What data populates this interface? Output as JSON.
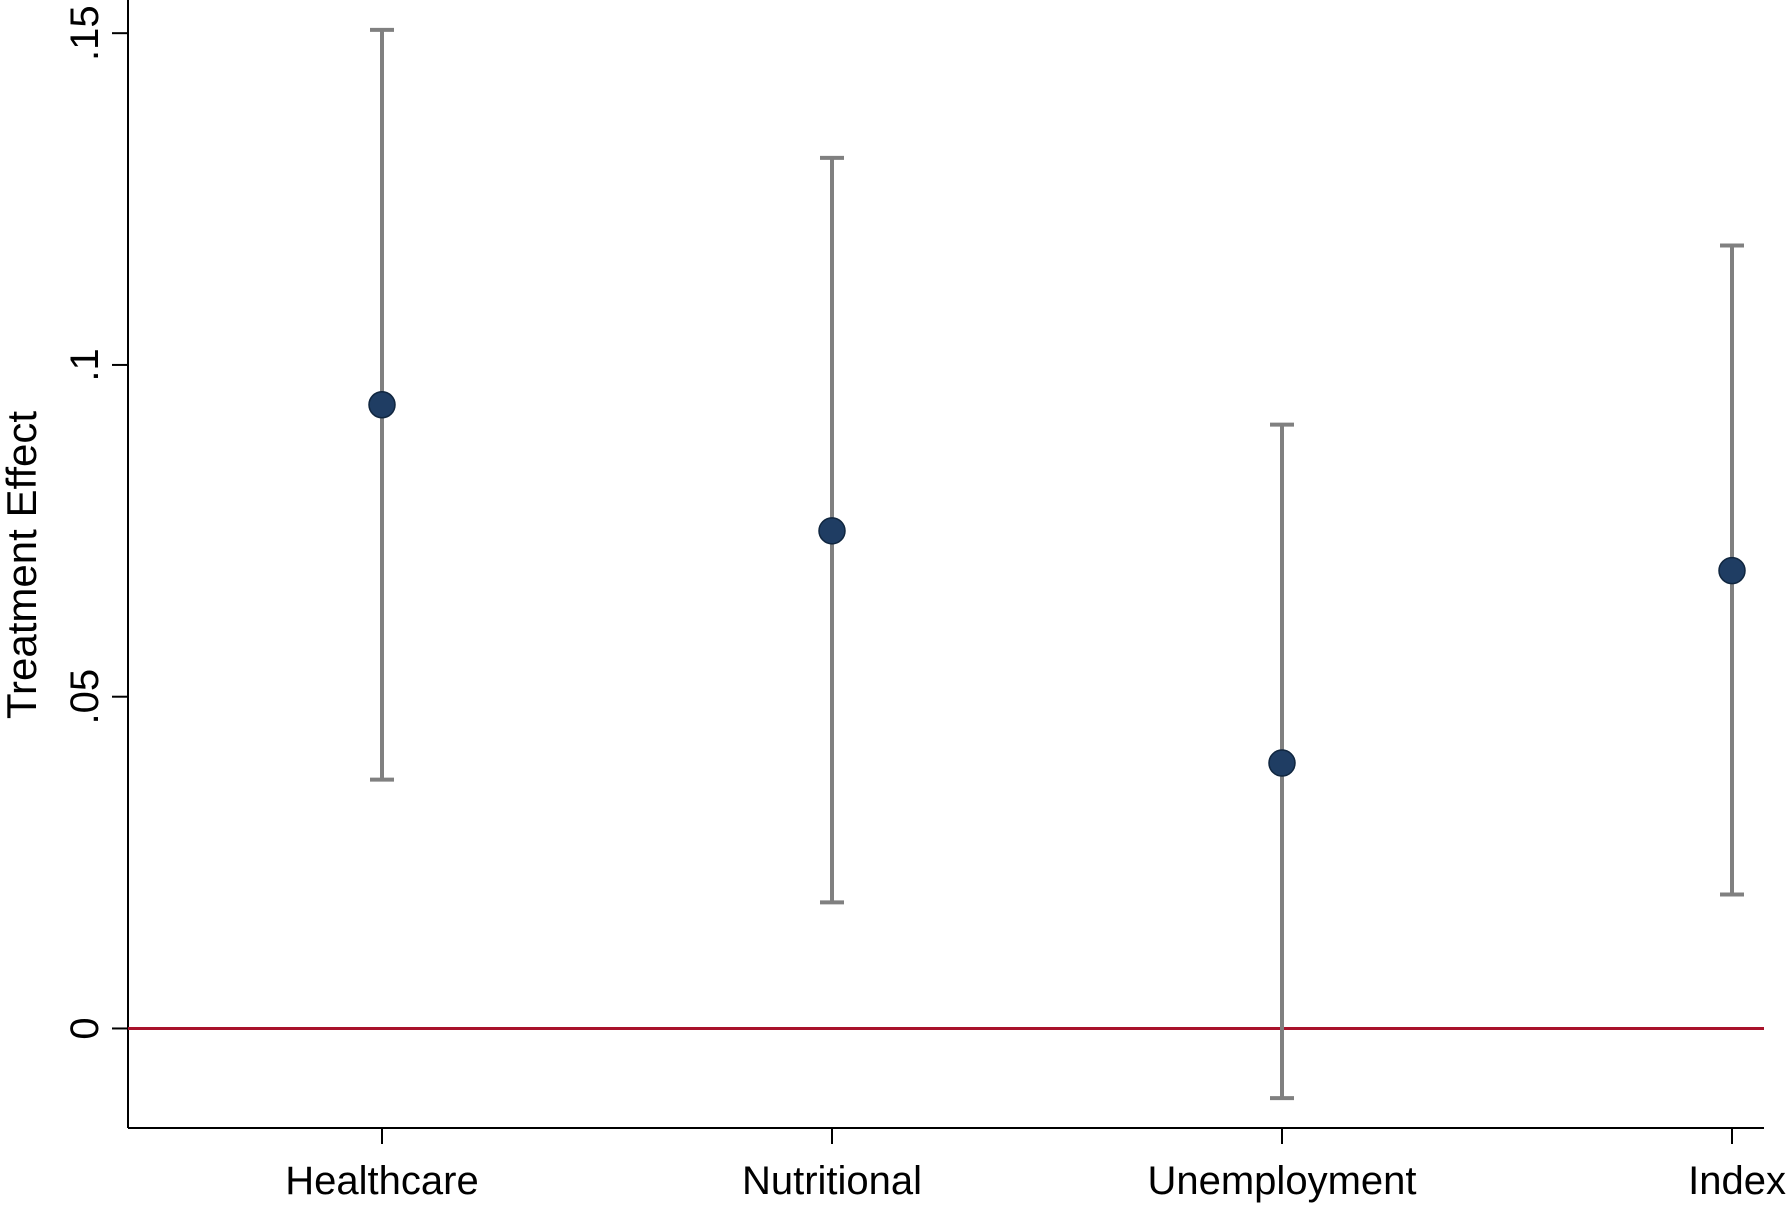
{
  "chart_data": {
    "type": "scatter",
    "title": "",
    "xlabel": "",
    "ylabel": "Treatment Effect",
    "categories": [
      "Healthcare",
      "Nutritional",
      "Unemployment",
      "Index"
    ],
    "values": [
      0.094,
      0.075,
      0.04,
      0.069
    ],
    "ci_lower": [
      0.0375,
      0.019,
      -0.0105,
      0.0202
    ],
    "ci_upper": [
      0.1505,
      0.1312,
      0.091,
      0.118
    ],
    "ylim": [
      -0.015,
      0.155
    ],
    "yticks": [
      0,
      0.05,
      0.1,
      0.15
    ],
    "ytick_labels": [
      "0",
      ".05",
      ".1",
      ".15"
    ],
    "reference_line": 0,
    "grid": false,
    "colors": {
      "point": "#1f3d63",
      "error_bar": "#808080",
      "reference_line": "#a8122a",
      "axis": "#000000"
    }
  }
}
